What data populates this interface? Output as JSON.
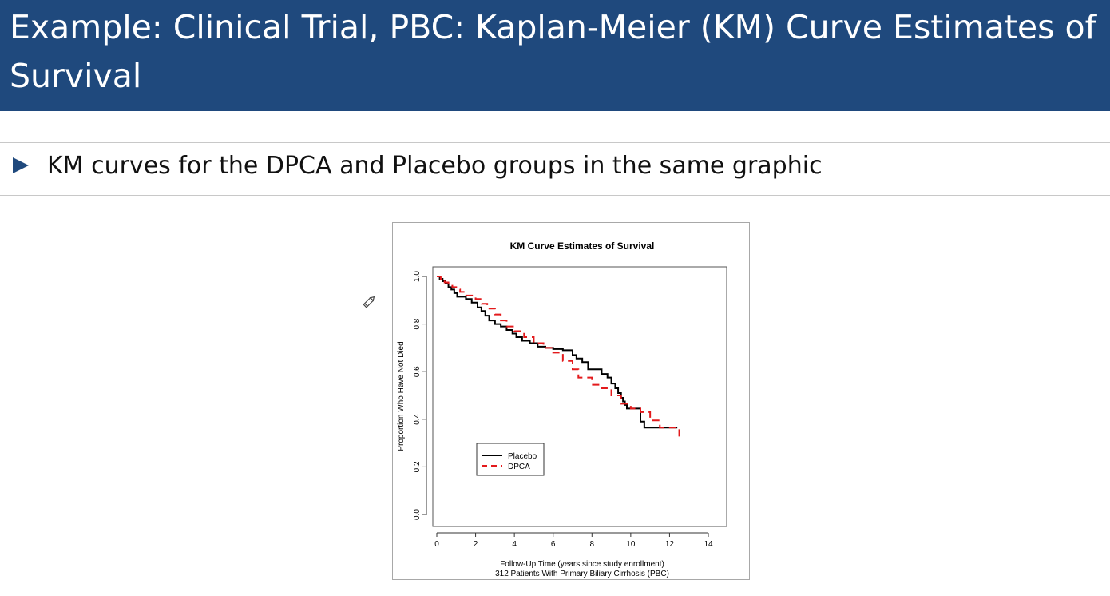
{
  "slide": {
    "title": "Example: Clinical Trial, PBC: Kaplan-Meier (KM) Curve Estimates of Survival",
    "bullet": "KM curves for the DPCA and Placebo groups in the same graphic"
  },
  "colors": {
    "title_bar": "#1f497d",
    "bullet_arrow": "#1f497d",
    "placebo": "#000000",
    "dpca": "#e31a1c"
  },
  "icons": {
    "annotation": "pencil-icon"
  },
  "chart_data": {
    "type": "line",
    "step": true,
    "title": "KM Curve Estimates of  Survival",
    "xlabel": "Follow-Up Time (years since study enrollment)",
    "xlabel2": "312 Patients With Primary Biliary Cirrhosis (PBC)",
    "ylabel": "Proportion Who Have Not Died",
    "xlim": [
      0,
      14
    ],
    "ylim": [
      0,
      1.0
    ],
    "xticks": [
      "0",
      "2",
      "4",
      "6",
      "8",
      "10",
      "12",
      "14"
    ],
    "yticks": [
      "0.0",
      "0.2",
      "0.4",
      "0.6",
      "0.8",
      "1.0"
    ],
    "legend": {
      "position": "bottom-left",
      "entries": [
        "Placebo",
        "DPCA"
      ]
    },
    "series": [
      {
        "name": "Placebo",
        "color": "#000000",
        "dash": "solid",
        "x": [
          0,
          0.15,
          0.3,
          0.45,
          0.6,
          0.75,
          0.9,
          1.05,
          1.5,
          1.8,
          2.1,
          2.3,
          2.5,
          2.7,
          3.0,
          3.3,
          3.6,
          3.9,
          4.1,
          4.4,
          4.8,
          5.2,
          5.6,
          6.0,
          6.5,
          7.0,
          7.2,
          7.5,
          7.8,
          8.5,
          8.8,
          9.0,
          9.2,
          9.35,
          9.5,
          9.6,
          9.7,
          9.8,
          10.5,
          10.7,
          12.4
        ],
        "y": [
          1.0,
          0.99,
          0.98,
          0.97,
          0.955,
          0.945,
          0.93,
          0.915,
          0.905,
          0.89,
          0.87,
          0.855,
          0.835,
          0.815,
          0.8,
          0.79,
          0.775,
          0.76,
          0.745,
          0.73,
          0.72,
          0.705,
          0.7,
          0.695,
          0.69,
          0.67,
          0.655,
          0.64,
          0.61,
          0.59,
          0.575,
          0.55,
          0.53,
          0.51,
          0.49,
          0.475,
          0.46,
          0.445,
          0.39,
          0.365,
          0.365
        ]
      },
      {
        "name": "DPCA",
        "color": "#e31a1c",
        "dash": "dashed",
        "x": [
          0,
          0.2,
          0.4,
          0.6,
          0.8,
          1.0,
          1.2,
          1.5,
          2.0,
          2.3,
          2.6,
          3.0,
          3.3,
          3.6,
          4.0,
          4.5,
          5.0,
          5.5,
          6.0,
          6.5,
          7.0,
          7.3,
          8.0,
          8.5,
          9.0,
          9.5,
          10.0,
          10.5,
          11.0,
          11.5,
          12.5
        ],
        "y": [
          1.0,
          0.99,
          0.975,
          0.965,
          0.955,
          0.945,
          0.935,
          0.92,
          0.905,
          0.885,
          0.865,
          0.84,
          0.815,
          0.79,
          0.77,
          0.745,
          0.72,
          0.7,
          0.68,
          0.645,
          0.61,
          0.575,
          0.545,
          0.53,
          0.5,
          0.465,
          0.445,
          0.43,
          0.395,
          0.365,
          0.325
        ]
      }
    ]
  }
}
